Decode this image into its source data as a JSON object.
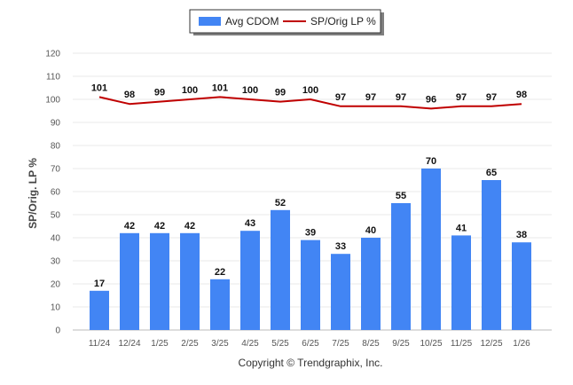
{
  "chart_data": {
    "type": "bar",
    "categories": [
      "11/24",
      "12/24",
      "1/25",
      "2/25",
      "3/25",
      "4/25",
      "5/25",
      "6/25",
      "7/25",
      "8/25",
      "9/25",
      "10/25",
      "11/25",
      "12/25",
      "1/26"
    ],
    "series": [
      {
        "name": "Avg CDOM",
        "type": "bar",
        "color": "#4285f4",
        "values": [
          17,
          42,
          42,
          42,
          22,
          43,
          52,
          39,
          33,
          40,
          55,
          70,
          41,
          65,
          38
        ]
      },
      {
        "name": "SP/Orig LP %",
        "type": "line",
        "color": "#c00000",
        "values": [
          101,
          98,
          99,
          100,
          101,
          100,
          99,
          100,
          97,
          97,
          97,
          96,
          97,
          97,
          98
        ]
      }
    ],
    "ylabel": "SP/Orig. LP %",
    "xlabel": "",
    "ylim": [
      0,
      120
    ],
    "yticks": [
      0,
      10,
      20,
      30,
      40,
      50,
      60,
      70,
      80,
      90,
      100,
      110,
      120
    ],
    "grid": true,
    "legend_position": "top-center"
  },
  "legend": {
    "bar_label": "Avg CDOM",
    "line_label": "SP/Orig LP %"
  },
  "credit": "Copyright © Trendgraphix, Inc."
}
